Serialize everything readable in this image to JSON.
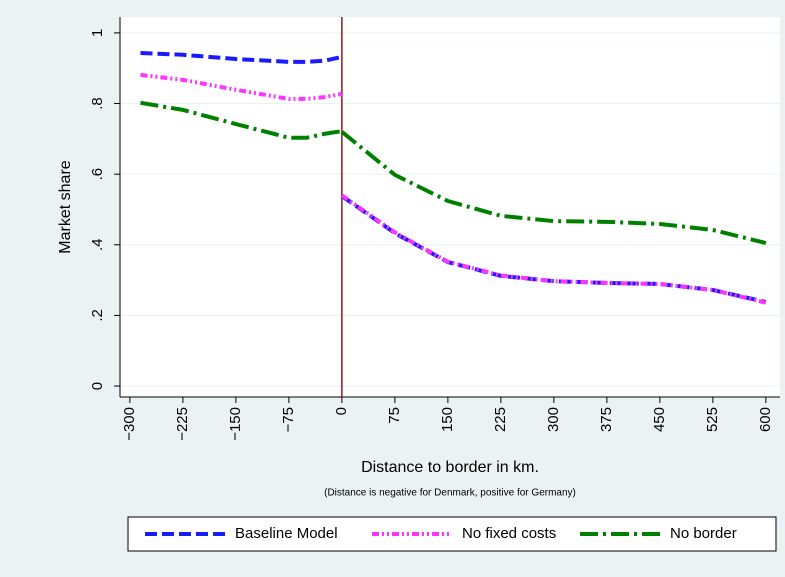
{
  "chart_data": {
    "type": "line",
    "ylabel": "Market share",
    "xlabel": "Distance to border in km.",
    "note": "(Distance is negative for Denmark, positive for Germany)",
    "x": [
      -285,
      -225,
      -150,
      -75,
      -50,
      -25,
      0,
      0,
      0,
      75,
      150,
      225,
      300,
      375,
      450,
      525,
      600
    ],
    "series": [
      {
        "name": "Baseline Model",
        "color": "#1a1aff",
        "values": [
          0.943,
          0.938,
          0.926,
          0.918,
          0.918,
          0.921,
          0.932,
          null,
          0.538,
          0.433,
          0.351,
          0.312,
          0.297,
          0.292,
          0.289,
          0.272,
          0.238
        ]
      },
      {
        "name": "No fixed costs",
        "color": "#ff33ff",
        "values": [
          0.881,
          0.867,
          0.839,
          0.813,
          0.813,
          0.818,
          0.827,
          null,
          0.54,
          0.435,
          0.352,
          0.313,
          0.297,
          0.292,
          0.289,
          0.272,
          0.236
        ]
      },
      {
        "name": "No border",
        "color": "#008000",
        "values": [
          0.802,
          0.782,
          0.742,
          0.703,
          0.703,
          0.714,
          0.722,
          null,
          0.72,
          0.598,
          0.524,
          0.482,
          0.467,
          0.465,
          0.459,
          0.442,
          0.405
        ]
      }
    ],
    "xline": 0,
    "xline_color": "#8b1a1a",
    "xlim": [
      -314,
      620
    ],
    "ylim": [
      -0.031,
      1.045
    ],
    "xticks": [
      {
        "value": -300,
        "label": "−300"
      },
      {
        "value": -225,
        "label": "−225"
      },
      {
        "value": -150,
        "label": "−150"
      },
      {
        "value": -75,
        "label": "−75"
      },
      0,
      75,
      150,
      225,
      300,
      375,
      450,
      525,
      600
    ],
    "yticks": [
      0,
      {
        "value": 0.2,
        "label": ".2"
      },
      {
        "value": 0.4,
        "label": ".4"
      },
      {
        "value": 0.6,
        "label": ".6"
      },
      {
        "value": 0.8,
        "label": ".8"
      },
      1
    ],
    "grid": true,
    "legend": "bottom"
  }
}
